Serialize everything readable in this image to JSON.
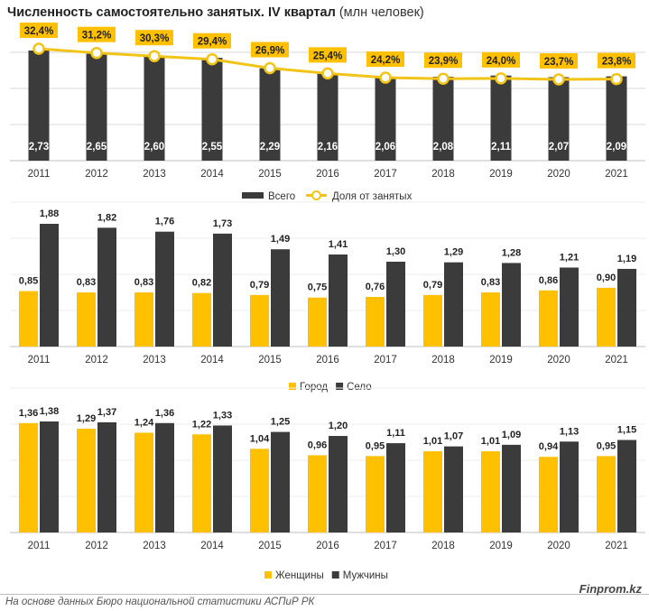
{
  "title": "Численность самостоятельно занятых. IV квартал",
  "unit": "(млн человек)",
  "colors": {
    "dark": "#3b3b3b",
    "yellow": "#ffc000",
    "line": "#f2c418",
    "label_bg": "#ffc000",
    "grid": "#d9d9d9"
  },
  "chart_data": [
    {
      "type": "bar+line",
      "categories": [
        "2011",
        "2012",
        "2013",
        "2014",
        "2015",
        "2016",
        "2017",
        "2018",
        "2019",
        "2020",
        "2021"
      ],
      "series": [
        {
          "name": "Всего",
          "type": "bar",
          "color": "#3b3b3b",
          "values": [
            2.73,
            2.65,
            2.6,
            2.55,
            2.29,
            2.16,
            2.06,
            2.08,
            2.11,
            2.07,
            2.09
          ],
          "labels": [
            "2,73",
            "2,65",
            "2,60",
            "2,55",
            "2,29",
            "2,16",
            "2,06",
            "2,08",
            "2,11",
            "2,07",
            "2,09"
          ]
        },
        {
          "name": "Доля от занятых",
          "type": "line",
          "color": "#f2c418",
          "values": [
            32.4,
            31.2,
            30.3,
            29.4,
            26.9,
            25.4,
            24.2,
            23.9,
            24.0,
            23.7,
            23.8
          ],
          "labels": [
            "32,4%",
            "31,2%",
            "30,3%",
            "29,4%",
            "26,9%",
            "25,4%",
            "24,2%",
            "23,9%",
            "24,0%",
            "23,7%",
            "23,8%"
          ]
        }
      ]
    },
    {
      "type": "bar",
      "categories": [
        "2011",
        "2012",
        "2013",
        "2014",
        "2015",
        "2016",
        "2017",
        "2018",
        "2019",
        "2020",
        "2021"
      ],
      "series": [
        {
          "name": "Город",
          "color": "#ffc000",
          "values": [
            0.85,
            0.83,
            0.83,
            0.82,
            0.79,
            0.75,
            0.76,
            0.79,
            0.83,
            0.86,
            0.9
          ],
          "labels": [
            "0,85",
            "0,83",
            "0,83",
            "0,82",
            "0,79",
            "0,75",
            "0,76",
            "0,79",
            "0,83",
            "0,86",
            "0,90"
          ]
        },
        {
          "name": "Село",
          "color": "#3b3b3b",
          "values": [
            1.88,
            1.82,
            1.76,
            1.73,
            1.49,
            1.41,
            1.3,
            1.29,
            1.28,
            1.21,
            1.19
          ],
          "labels": [
            "1,88",
            "1,82",
            "1,76",
            "1,73",
            "1,49",
            "1,41",
            "1,30",
            "1,29",
            "1,28",
            "1,21",
            "1,19"
          ]
        }
      ]
    },
    {
      "type": "bar",
      "categories": [
        "2011",
        "2012",
        "2013",
        "2014",
        "2015",
        "2016",
        "2017",
        "2018",
        "2019",
        "2020",
        "2021"
      ],
      "series": [
        {
          "name": "Женщины",
          "color": "#ffc000",
          "values": [
            1.36,
            1.29,
            1.24,
            1.22,
            1.04,
            0.96,
            0.95,
            1.01,
            1.01,
            0.94,
            0.95
          ],
          "labels": [
            "1,36",
            "1,29",
            "1,24",
            "1,22",
            "1,04",
            "0,96",
            "0,95",
            "1,01",
            "1,01",
            "0,94",
            "0,95"
          ]
        },
        {
          "name": "Мужчины",
          "color": "#3b3b3b",
          "values": [
            1.38,
            1.37,
            1.36,
            1.33,
            1.25,
            1.2,
            1.11,
            1.07,
            1.09,
            1.13,
            1.15
          ],
          "labels": [
            "1,38",
            "1,37",
            "1,36",
            "1,33",
            "1,25",
            "1,20",
            "1,11",
            "1,07",
            "1,09",
            "1,13",
            "1,15"
          ]
        }
      ]
    }
  ],
  "footer": {
    "source": "На основе данных Бюро национальной статистики АСПиР РК",
    "brand": "Finprom.kz"
  }
}
